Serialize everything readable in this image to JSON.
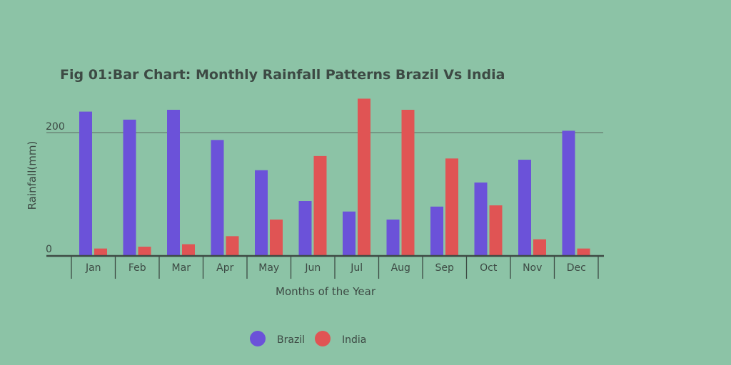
{
  "chart_data": {
    "type": "bar",
    "title": "Fig 01:Bar Chart: Monthly Rainfall Patterns Brazil Vs India",
    "xlabel": "Months of the Year",
    "ylabel": "Rainfall(mm)",
    "categories": [
      "Jan",
      "Feb",
      "Mar",
      "Apr",
      "May",
      "Jun",
      "Jul",
      "Aug",
      "Sep",
      "Oct",
      "Nov",
      "Dec"
    ],
    "series": [
      {
        "name": "Brazil",
        "color": "#6b52d9",
        "values": [
          234,
          221,
          237,
          188,
          139,
          89,
          72,
          59,
          80,
          119,
          156,
          203
        ]
      },
      {
        "name": "India",
        "color": "#e05454",
        "values": [
          12,
          15,
          19,
          32,
          59,
          162,
          255,
          237,
          158,
          82,
          27,
          12
        ]
      }
    ],
    "yticks": [
      "0",
      "200"
    ],
    "ylim": [
      0,
      270
    ],
    "grid": true,
    "legend": "bottom"
  }
}
